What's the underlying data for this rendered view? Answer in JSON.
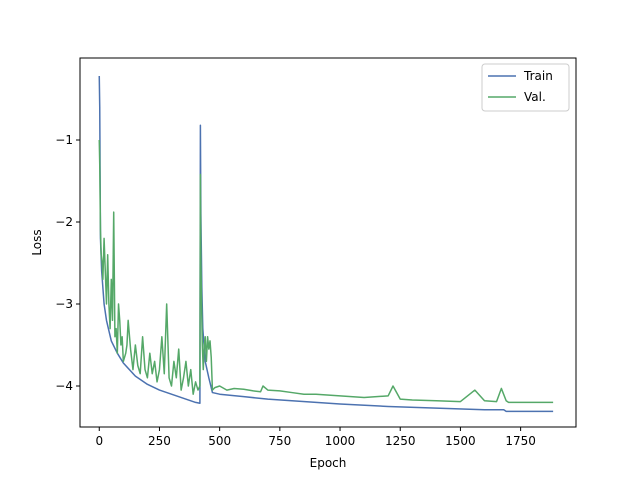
{
  "chart_data": {
    "type": "line",
    "title": "",
    "xlabel": "Epoch",
    "ylabel": "Loss",
    "xlim": [
      -80,
      1980
    ],
    "ylim": [
      -4.5,
      0.0
    ],
    "xticks": [
      0,
      250,
      500,
      750,
      1000,
      1250,
      1500,
      1750
    ],
    "xtick_labels": [
      "0",
      "250",
      "500",
      "750",
      "1000",
      "1250",
      "1500",
      "1750"
    ],
    "yticks": [
      -4,
      -3,
      -2,
      -1
    ],
    "ytick_labels": [
      "−4",
      "−3",
      "−2",
      "−1"
    ],
    "grid": false,
    "legend": "top-right",
    "colors": {
      "Train": "#4c72b0",
      "Val.": "#55a868"
    },
    "series": [
      {
        "name": "Train",
        "color": "#4c72b0",
        "x": [
          0,
          2,
          5,
          10,
          20,
          30,
          50,
          75,
          100,
          150,
          200,
          250,
          300,
          350,
          400,
          418,
          420,
          422,
          426,
          430,
          440,
          455,
          470,
          500,
          600,
          700,
          800,
          1000,
          1200,
          1400,
          1600,
          1680,
          1690,
          1750,
          1800,
          1885
        ],
        "y": [
          -0.22,
          -0.6,
          -2.2,
          -2.6,
          -3.0,
          -3.2,
          -3.45,
          -3.6,
          -3.72,
          -3.88,
          -3.98,
          -4.05,
          -4.1,
          -4.15,
          -4.2,
          -4.21,
          -0.82,
          -1.9,
          -2.8,
          -3.3,
          -3.7,
          -3.9,
          -4.08,
          -4.1,
          -4.13,
          -4.16,
          -4.18,
          -4.22,
          -4.25,
          -4.27,
          -4.29,
          -4.29,
          -4.31,
          -4.31,
          -4.31,
          -4.31
        ]
      },
      {
        "name": "Val.",
        "color": "#55a868",
        "x": [
          0,
          2,
          5,
          8,
          12,
          15,
          20,
          25,
          30,
          35,
          40,
          45,
          50,
          55,
          60,
          65,
          70,
          75,
          80,
          85,
          90,
          95,
          100,
          110,
          115,
          120,
          130,
          140,
          150,
          160,
          170,
          180,
          190,
          200,
          210,
          220,
          230,
          240,
          250,
          260,
          270,
          280,
          290,
          300,
          310,
          320,
          330,
          340,
          350,
          360,
          370,
          380,
          390,
          400,
          410,
          418,
          420,
          422,
          425,
          428,
          432,
          436,
          440,
          445,
          450,
          455,
          460,
          465,
          470,
          480,
          500,
          530,
          560,
          600,
          640,
          670,
          680,
          700,
          750,
          800,
          850,
          900,
          1000,
          1100,
          1200,
          1220,
          1250,
          1300,
          1400,
          1500,
          1560,
          1600,
          1650,
          1670,
          1690,
          1700,
          1750,
          1800,
          1885
        ],
        "y": [
          -1.0,
          -1.3,
          -2.1,
          -2.4,
          -2.5,
          -2.7,
          -2.2,
          -2.6,
          -3.0,
          -2.4,
          -3.0,
          -3.3,
          -2.7,
          -3.2,
          -1.88,
          -3.4,
          -3.3,
          -3.6,
          -3.0,
          -3.2,
          -3.5,
          -3.4,
          -3.7,
          -3.6,
          -3.5,
          -3.2,
          -3.55,
          -3.8,
          -3.5,
          -3.75,
          -3.85,
          -3.4,
          -3.8,
          -3.9,
          -3.6,
          -3.85,
          -3.7,
          -3.95,
          -3.8,
          -3.4,
          -3.85,
          -3.0,
          -3.9,
          -4.0,
          -3.7,
          -3.9,
          -3.55,
          -4.05,
          -3.9,
          -3.7,
          -4.0,
          -3.8,
          -4.1,
          -3.95,
          -4.05,
          -4.0,
          -1.42,
          -2.5,
          -3.0,
          -3.5,
          -3.8,
          -3.5,
          -3.4,
          -3.7,
          -3.4,
          -3.55,
          -3.45,
          -3.65,
          -4.05,
          -4.02,
          -4.0,
          -4.05,
          -4.03,
          -4.04,
          -4.06,
          -4.07,
          -4.0,
          -4.05,
          -4.06,
          -4.08,
          -4.1,
          -4.1,
          -4.12,
          -4.14,
          -4.12,
          -4.0,
          -4.16,
          -4.17,
          -4.18,
          -4.19,
          -4.05,
          -4.18,
          -4.19,
          -4.03,
          -4.18,
          -4.2,
          -4.2,
          -4.2,
          -4.2
        ]
      }
    ]
  }
}
